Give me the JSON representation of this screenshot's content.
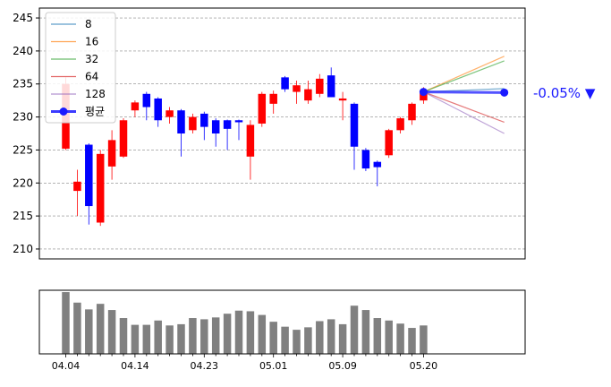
{
  "chart_data": [
    {
      "type": "candlestick",
      "ylim": [
        208.5,
        246.5
      ],
      "yticks": [
        210,
        215,
        220,
        225,
        230,
        235,
        240,
        245
      ],
      "grid": "horizontal-dashed",
      "legend_position": "top-left",
      "candles": [
        {
          "open": 225.2,
          "close": 235.0,
          "high": 236.0,
          "low": 225.0
        },
        {
          "open": 218.8,
          "close": 220.2,
          "high": 222.0,
          "low": 215.0
        },
        {
          "open": 225.8,
          "close": 216.5,
          "high": 226.0,
          "low": 213.7
        },
        {
          "open": 214.0,
          "close": 224.4,
          "high": 225.0,
          "low": 213.5
        },
        {
          "open": 222.5,
          "close": 226.5,
          "high": 228.0,
          "low": 220.5
        },
        {
          "open": 224.0,
          "close": 229.5,
          "high": 229.8,
          "low": 223.8
        },
        {
          "open": 231.0,
          "close": 232.2,
          "high": 232.5,
          "low": 230.0
        },
        {
          "open": 233.5,
          "close": 231.5,
          "high": 233.8,
          "low": 229.5
        },
        {
          "open": 232.8,
          "close": 229.5,
          "high": 233.0,
          "low": 228.5
        },
        {
          "open": 230.0,
          "close": 231.0,
          "high": 231.5,
          "low": 229.0
        },
        {
          "open": 231.0,
          "close": 227.5,
          "high": 231.2,
          "low": 224.0
        },
        {
          "open": 228.0,
          "close": 230.0,
          "high": 230.5,
          "low": 227.5
        },
        {
          "open": 230.5,
          "close": 228.5,
          "high": 230.8,
          "low": 226.5
        },
        {
          "open": 229.5,
          "close": 227.5,
          "high": 229.8,
          "low": 225.5
        },
        {
          "open": 229.5,
          "close": 228.2,
          "high": 229.6,
          "low": 225.0
        },
        {
          "open": 229.5,
          "close": 229.2,
          "high": 229.6,
          "low": 226.5
        },
        {
          "open": 224.0,
          "close": 228.8,
          "high": 229.5,
          "low": 220.5
        },
        {
          "open": 229.0,
          "close": 233.5,
          "high": 233.8,
          "low": 228.5
        },
        {
          "open": 232.0,
          "close": 233.5,
          "high": 234.0,
          "low": 230.5
        },
        {
          "open": 236.0,
          "close": 234.2,
          "high": 236.2,
          "low": 233.8
        },
        {
          "open": 233.8,
          "close": 234.8,
          "high": 235.5,
          "low": 232.0
        },
        {
          "open": 232.5,
          "close": 234.2,
          "high": 235.5,
          "low": 232.0
        },
        {
          "open": 233.5,
          "close": 235.8,
          "high": 236.5,
          "low": 233.0
        },
        {
          "open": 236.3,
          "close": 233.0,
          "high": 237.5,
          "low": 233.0
        },
        {
          "open": 232.5,
          "close": 232.8,
          "high": 233.8,
          "low": 229.5
        },
        {
          "open": 232.0,
          "close": 225.5,
          "high": 232.2,
          "low": 222.0
        },
        {
          "open": 225.0,
          "close": 222.2,
          "high": 225.3,
          "low": 221.8
        },
        {
          "open": 223.2,
          "close": 222.4,
          "high": 223.4,
          "low": 219.5
        },
        {
          "open": 224.2,
          "close": 228.0,
          "high": 228.2,
          "low": 223.8
        },
        {
          "open": 228.0,
          "close": 229.8,
          "high": 230.0,
          "low": 227.5
        },
        {
          "open": 229.5,
          "close": 232.0,
          "high": 232.2,
          "low": 228.8
        },
        {
          "open": 232.5,
          "close": 234.0,
          "high": 234.5,
          "low": 232.0
        }
      ],
      "projection": {
        "start_index": 31,
        "end_index": 38,
        "start_value": 233.8,
        "series": [
          {
            "name": "8",
            "color": "#1f77b4",
            "end_value": 234.3
          },
          {
            "name": "16",
            "color": "#ff7f0e",
            "end_value": 239.2
          },
          {
            "name": "32",
            "color": "#2ca02c",
            "end_value": 238.5
          },
          {
            "name": "64",
            "color": "#d62728",
            "end_value": 229.2
          },
          {
            "name": "128",
            "color": "#9467bd",
            "end_value": 227.5
          },
          {
            "name": "평균",
            "color": "#1a1aff",
            "end_value": 233.7
          }
        ]
      },
      "annotation": "-0.05% ▼",
      "colors": {
        "up": "#ff0000",
        "down": "#0000ff",
        "grid": "#888888"
      }
    },
    {
      "type": "bar",
      "values": [
        10,
        8.3,
        7.2,
        8.1,
        7.1,
        5.8,
        4.7,
        4.7,
        5.4,
        4.6,
        4.8,
        5.8,
        5.6,
        5.9,
        6.5,
        7.0,
        6.9,
        6.3,
        5.2,
        4.4,
        3.9,
        4.3,
        5.3,
        5.6,
        4.8,
        7.8,
        7.1,
        5.8,
        5.4,
        4.9,
        4.2,
        4.6
      ],
      "color": "#808080",
      "xtick_labels": [
        "04.04",
        "04.14",
        "04.23",
        "05.01",
        "05.09",
        "05.20"
      ],
      "xtick_label_indices": [
        0,
        6,
        12,
        18,
        24,
        31
      ],
      "minor_tick_count": 32
    }
  ]
}
